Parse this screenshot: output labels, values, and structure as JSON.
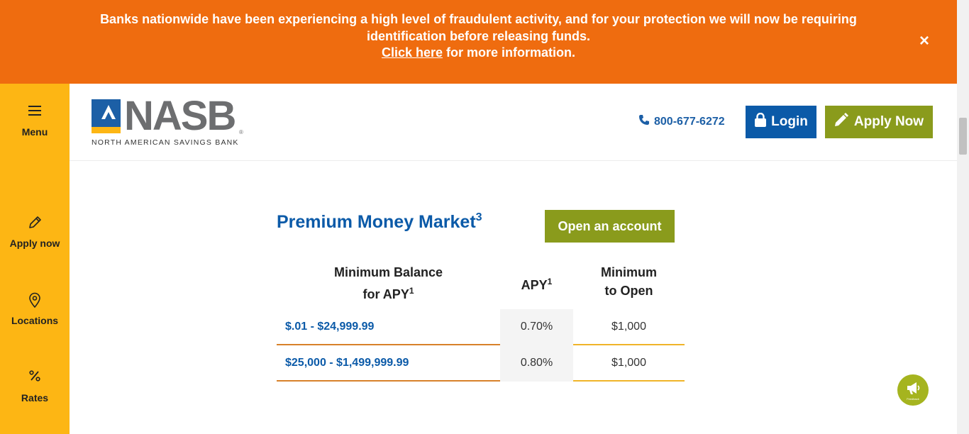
{
  "alert": {
    "line1": "Banks nationwide have been experiencing a high level of fraudulent activity, and for your protection we will now be requiring",
    "line2": "identification before releasing funds.",
    "link": "Click here",
    "line3_rest": " for more information.",
    "close": "×"
  },
  "sidebar": {
    "items": [
      {
        "label": "Menu",
        "icon": "hamburger-icon"
      },
      {
        "label": "Apply now",
        "icon": "pencil-icon"
      },
      {
        "label": "Locations",
        "icon": "map-pin-icon"
      },
      {
        "label": "Rates",
        "icon": "percent-icon"
      }
    ]
  },
  "header": {
    "logo_word": "NASB",
    "logo_reg": "®",
    "logo_sub": "NORTH AMERICAN SAVINGS BANK",
    "phone": "800-677-6272",
    "login": "Login",
    "apply": "Apply Now"
  },
  "product": {
    "title": "Premium Money Market",
    "title_sup": "3",
    "open_button": "Open an account",
    "headers": {
      "col1_line1": "Minimum Balance",
      "col1_line2": "for APY",
      "col1_sup": "1",
      "col2": "APY",
      "col2_sup": "1",
      "col3_line1": "Minimum",
      "col3_line2": "to Open"
    },
    "rows": [
      {
        "balance": "$.01 - $24,999.99",
        "apy": "0.70%",
        "min_open": "$1,000"
      },
      {
        "balance": "$25,000 - $1,499,999.99",
        "apy": "0.80%",
        "min_open": "$1,000"
      }
    ]
  },
  "feedback": {
    "label": "Feedback",
    "icon": "megaphone-icon"
  },
  "colors": {
    "orange": "#ef6c0f",
    "yellow": "#fdb614",
    "blue": "#0b5aa8",
    "green": "#8a9b1c"
  }
}
